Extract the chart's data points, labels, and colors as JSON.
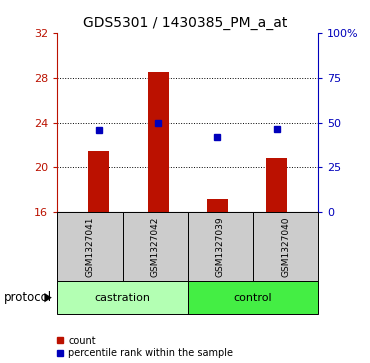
{
  "title": "GDS5301 / 1430385_PM_a_at",
  "samples": [
    "GSM1327041",
    "GSM1327042",
    "GSM1327039",
    "GSM1327040"
  ],
  "group_labels": [
    "castration",
    "control"
  ],
  "bar_values": [
    21.5,
    28.5,
    17.2,
    20.8
  ],
  "dot_values": [
    23.3,
    24.0,
    22.7,
    23.4
  ],
  "bar_color": "#bb1100",
  "dot_color": "#0000bb",
  "ylim_left": [
    16,
    32
  ],
  "ylim_right": [
    0,
    100
  ],
  "yticks_left": [
    16,
    20,
    24,
    28,
    32
  ],
  "yticks_right": [
    0,
    25,
    50,
    75,
    100
  ],
  "ytick_labels_right": [
    "0",
    "25",
    "50",
    "75",
    "100%"
  ],
  "grid_values": [
    20,
    24,
    28
  ],
  "castration_color": "#b3ffb3",
  "control_color": "#44ee44",
  "sample_box_color": "#cccccc",
  "legend_count_label": "count",
  "legend_pct_label": "percentile rank within the sample",
  "protocol_label": "protocol"
}
